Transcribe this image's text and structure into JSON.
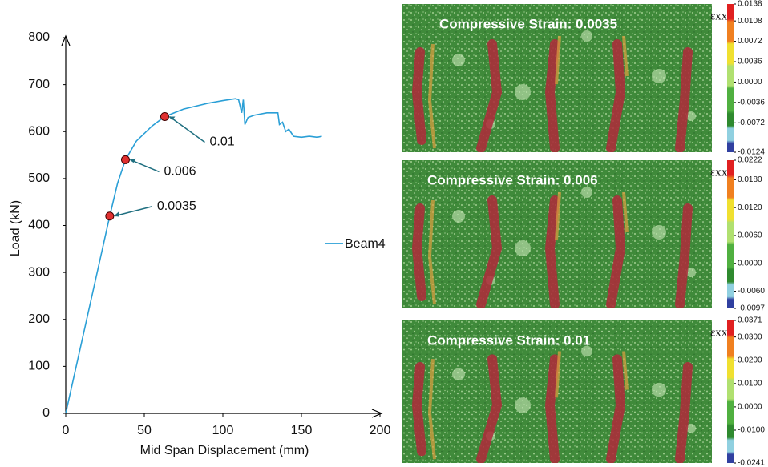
{
  "chart_data": {
    "type": "line",
    "xlabel": "Mid Span Displacement (mm)",
    "ylabel": "Load (kN)",
    "x": [
      0,
      28,
      33,
      38,
      45,
      55,
      63,
      75,
      90,
      100,
      108,
      110,
      112,
      113,
      114,
      116,
      120,
      128,
      135,
      136,
      138,
      140,
      142,
      145,
      150,
      155,
      160,
      163
    ],
    "series": [
      {
        "name": "Beam4",
        "color": "#2a9fd6",
        "values": [
          0,
          420,
          490,
          540,
          580,
          612,
          632,
          648,
          660,
          666,
          670,
          668,
          640,
          668,
          615,
          630,
          635,
          640,
          640,
          615,
          620,
          600,
          605,
          590,
          588,
          590,
          588,
          590
        ]
      }
    ],
    "xlim": [
      0,
      200
    ],
    "ylim": [
      0,
      800
    ],
    "xticks": [
      0,
      50,
      100,
      150,
      200
    ],
    "yticks": [
      0,
      100,
      200,
      300,
      400,
      500,
      600,
      700,
      800
    ],
    "points": {
      "x": [
        28,
        38,
        63
      ],
      "y": [
        420,
        540,
        632
      ],
      "labels": [
        "0.0035",
        "0.006",
        "0.01"
      ],
      "color": "#e03030"
    }
  },
  "panels": [
    {
      "title": "Compressive Strain: 0.0035",
      "colorbar_label": "εxx",
      "colorbar_ticks": [
        0.0138,
        0.0108,
        0.0072,
        0.0036,
        {
          "value": 0,
          "label": "0.0000"
        },
        -0.0036,
        -0.0072,
        -0.0124
      ]
    },
    {
      "title": "Compressive Strain: 0.006",
      "colorbar_label": "εxx",
      "colorbar_ticks": [
        0.0222,
        {
          "value": 0.018,
          "label": "0.0180"
        },
        {
          "value": 0.012,
          "label": "0.0120"
        },
        {
          "value": 0.006,
          "label": "0.0060"
        },
        {
          "value": 0,
          "label": "0.0000"
        },
        {
          "value": -0.006,
          "label": "-0.0060"
        },
        -0.0097
      ]
    },
    {
      "title": "Compressive Strain: 0.01",
      "colorbar_label": "εxx",
      "colorbar_ticks": [
        0.0371,
        {
          "value": 0.03,
          "label": "0.0300"
        },
        {
          "value": 0.02,
          "label": "0.0200"
        },
        {
          "value": 0.01,
          "label": "0.0100"
        },
        {
          "value": 0,
          "label": "0.0000"
        },
        {
          "value": -0.01,
          "label": "-0.0100"
        },
        -0.0241
      ]
    }
  ]
}
